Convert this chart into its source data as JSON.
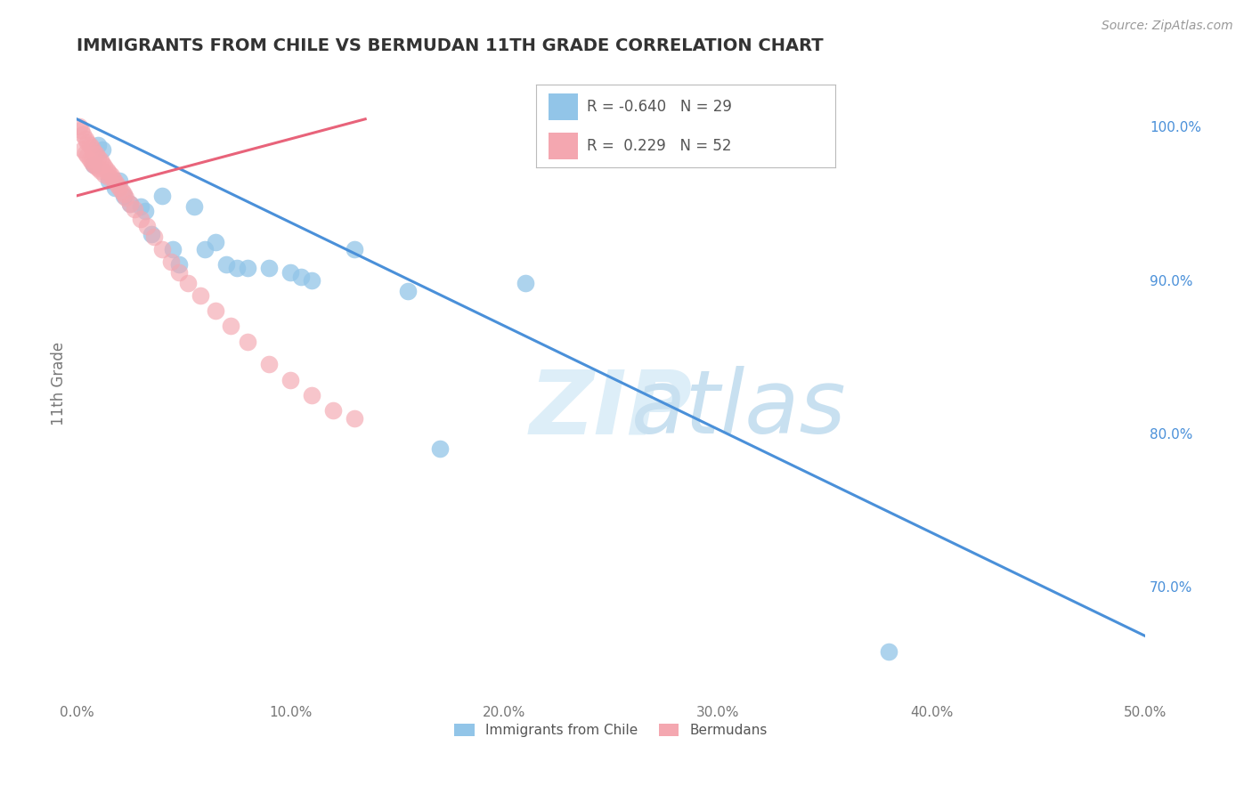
{
  "title": "IMMIGRANTS FROM CHILE VS BERMUDAN 11TH GRADE CORRELATION CHART",
  "source_text": "Source: ZipAtlas.com",
  "ylabel": "11th Grade",
  "xlim": [
    0.0,
    0.5
  ],
  "ylim": [
    0.625,
    1.04
  ],
  "xtick_labels": [
    "0.0%",
    "10.0%",
    "20.0%",
    "30.0%",
    "40.0%",
    "50.0%"
  ],
  "xtick_vals": [
    0.0,
    0.1,
    0.2,
    0.3,
    0.4,
    0.5
  ],
  "right_ytick_vals": [
    1.0,
    0.9,
    0.8,
    0.7
  ],
  "right_ytick_labels": [
    "100.0%",
    "90.0%",
    "80.0%",
    "70.0%"
  ],
  "blue_color": "#92c5e8",
  "pink_color": "#f4a7b0",
  "blue_line_color": "#4a90d9",
  "pink_line_color": "#e8637a",
  "R_blue": -0.64,
  "N_blue": 29,
  "R_pink": 0.229,
  "N_pink": 52,
  "blue_scatter_x": [
    0.008,
    0.01,
    0.012,
    0.015,
    0.018,
    0.02,
    0.022,
    0.025,
    0.03,
    0.032,
    0.035,
    0.04,
    0.045,
    0.048,
    0.055,
    0.06,
    0.065,
    0.07,
    0.075,
    0.08,
    0.09,
    0.1,
    0.105,
    0.11,
    0.13,
    0.155,
    0.17,
    0.21,
    0.38
  ],
  "blue_scatter_y": [
    0.975,
    0.988,
    0.985,
    0.965,
    0.96,
    0.965,
    0.955,
    0.95,
    0.948,
    0.945,
    0.93,
    0.955,
    0.92,
    0.91,
    0.948,
    0.92,
    0.925,
    0.91,
    0.908,
    0.908,
    0.908,
    0.905,
    0.902,
    0.9,
    0.92,
    0.893,
    0.79,
    0.898,
    0.658
  ],
  "pink_scatter_x": [
    0.001,
    0.002,
    0.003,
    0.004,
    0.005,
    0.006,
    0.007,
    0.008,
    0.009,
    0.01,
    0.011,
    0.012,
    0.013,
    0.014,
    0.015,
    0.016,
    0.017,
    0.018,
    0.019,
    0.02,
    0.021,
    0.022,
    0.023,
    0.025,
    0.027,
    0.03,
    0.033,
    0.036,
    0.04,
    0.044,
    0.048,
    0.052,
    0.058,
    0.065,
    0.072,
    0.08,
    0.09,
    0.1,
    0.11,
    0.12,
    0.13,
    0.003,
    0.004,
    0.005,
    0.006,
    0.007,
    0.008,
    0.009,
    0.01,
    0.011,
    0.013,
    0.015
  ],
  "pink_scatter_y": [
    1.0,
    0.998,
    0.995,
    0.992,
    0.99,
    0.988,
    0.986,
    0.984,
    0.982,
    0.98,
    0.978,
    0.976,
    0.974,
    0.972,
    0.97,
    0.968,
    0.966,
    0.964,
    0.962,
    0.96,
    0.958,
    0.956,
    0.954,
    0.95,
    0.946,
    0.94,
    0.935,
    0.928,
    0.92,
    0.912,
    0.905,
    0.898,
    0.89,
    0.88,
    0.87,
    0.86,
    0.845,
    0.835,
    0.825,
    0.815,
    0.81,
    0.985,
    0.983,
    0.981,
    0.979,
    0.977,
    0.975,
    0.974,
    0.973,
    0.971,
    0.969,
    0.967
  ],
  "blue_trend_x": [
    0.0,
    0.5
  ],
  "blue_trend_y": [
    1.005,
    0.668
  ],
  "pink_trend_x": [
    0.0,
    0.135
  ],
  "pink_trend_y": [
    0.955,
    1.005
  ],
  "background_color": "#ffffff",
  "grid_color": "#cccccc"
}
